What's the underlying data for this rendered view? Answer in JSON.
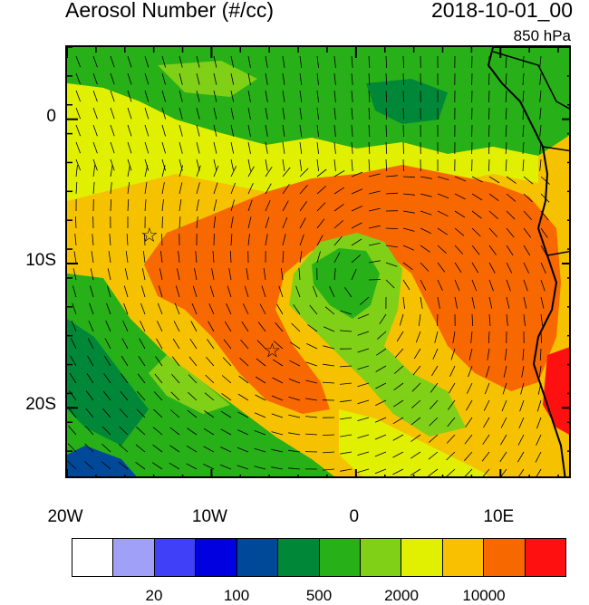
{
  "title": "Aerosol Number (#/cc)",
  "datetime": "2018-10-01_00",
  "level": "850 hPa",
  "map": {
    "lon_range": [
      -20,
      15
    ],
    "lat_range": [
      -25,
      5
    ],
    "y_ticks": [
      {
        "lat": 0,
        "label": "0"
      },
      {
        "lat": -10,
        "label": "10S"
      },
      {
        "lat": -20,
        "label": "20S"
      }
    ],
    "x_ticks": [
      {
        "lon": -20,
        "label": "20W"
      },
      {
        "lon": -10,
        "label": "10W"
      },
      {
        "lon": 0,
        "label": "0"
      },
      {
        "lon": 10,
        "label": "10E"
      }
    ],
    "markers": [
      {
        "lon": -14.3,
        "lat": -8.0,
        "symbol": "☆"
      },
      {
        "lon": -5.8,
        "lat": -16.0,
        "symbol": "☆"
      }
    ]
  },
  "colorbar": {
    "colors": [
      "#ffffff",
      "#a0a0f8",
      "#4040f8",
      "#0000e0",
      "#004898",
      "#008838",
      "#28b018",
      "#80d018",
      "#e0f000",
      "#f8c000",
      "#f86800",
      "#ff1010"
    ],
    "labels": [
      {
        "after_box": 1,
        "text": "20"
      },
      {
        "after_box": 3,
        "text": "100"
      },
      {
        "after_box": 5,
        "text": "500"
      },
      {
        "after_box": 7,
        "text": "2000"
      },
      {
        "after_box": 9,
        "text": "10000"
      }
    ]
  }
}
